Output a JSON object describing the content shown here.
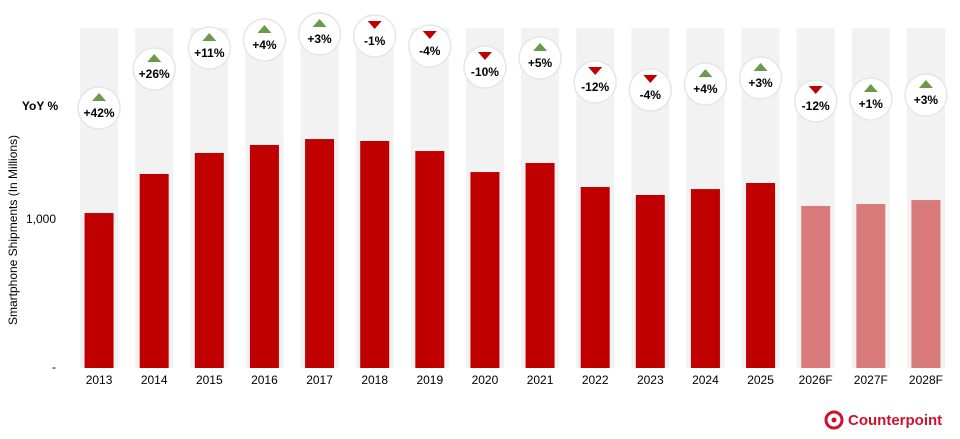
{
  "chart_data": {
    "type": "bar",
    "y_label": "Smartphone Shipments (In Millions)",
    "categories": [
      "2013",
      "2014",
      "2015",
      "2016",
      "2017",
      "2018",
      "2019",
      "2020",
      "2021",
      "2022",
      "2023",
      "2024",
      "2025",
      "2026F",
      "2027F",
      "2028F"
    ],
    "values": [
      1047,
      1311,
      1453,
      1507,
      1547,
      1534,
      1466,
      1324,
      1385,
      1223,
      1169,
      1209,
      1250,
      1095,
      1108,
      1135
    ],
    "colors": [
      "#c00000",
      "#c00000",
      "#c00000",
      "#c00000",
      "#c00000",
      "#c00000",
      "#c00000",
      "#c00000",
      "#c00000",
      "#c00000",
      "#c00000",
      "#c00000",
      "#c00000",
      "#d97a7a",
      "#d97a7a",
      "#d97a7a"
    ],
    "ylim": [
      0,
      2000
    ],
    "yticks": [
      {
        "value": 0,
        "label": "-"
      },
      {
        "value": 1000,
        "label": "1,000"
      }
    ],
    "yoy": {
      "name": "YoY %",
      "values": [
        42,
        26,
        11,
        4,
        3,
        -1,
        -4,
        -10,
        5,
        -12,
        -4,
        4,
        3,
        -12,
        1,
        3
      ],
      "value_labels": [
        "+42%",
        "+26%",
        "+11%",
        "+4%",
        "+3%",
        "-1%",
        "-4%",
        "-10%",
        "+5%",
        "-12%",
        "-4%",
        "+4%",
        "+3%",
        "-12%",
        "+1%",
        "+3%"
      ],
      "up_color": "#6a9a4a",
      "down_color": "#c00000"
    },
    "brand": "Counterpoint"
  }
}
